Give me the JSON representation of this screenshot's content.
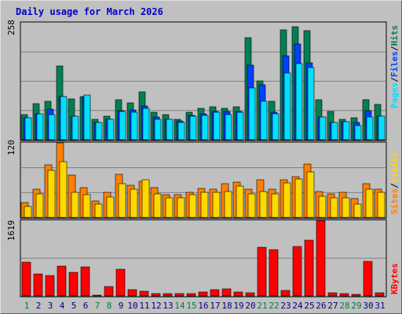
{
  "window": {
    "title": "Daily usage for March 2026"
  },
  "colors": {
    "hits": "#008050",
    "files": "#0040ff",
    "pages": "#00e0ff",
    "visits": "#ff8000",
    "sites": "#ffd800",
    "kbytes": "#ff0000",
    "grid": "#808080",
    "plot_bg": "#c0c0c0",
    "weekday_label": "#000080",
    "weekend_label": "#008040"
  },
  "chart_data": [
    {
      "type": "bar",
      "title": "Daily usage for March 2026",
      "categories": [
        "1",
        "2",
        "3",
        "4",
        "5",
        "6",
        "7",
        "8",
        "9",
        "10",
        "11",
        "12",
        "13",
        "14",
        "15",
        "16",
        "17",
        "18",
        "19",
        "20",
        "21",
        "22",
        "23",
        "24",
        "25",
        "26",
        "27",
        "28",
        "29",
        "30",
        "31"
      ],
      "weekend_days": [
        "1",
        "7",
        "8",
        "14",
        "15",
        "21",
        "22",
        "28",
        "29"
      ],
      "ymax_label": "258",
      "ylim": [
        0,
        258
      ],
      "legend": [
        "Pages",
        "Files",
        "Hits"
      ],
      "grid": true,
      "series": [
        {
          "name": "Hits",
          "values": [
            56,
            80,
            85,
            162,
            90,
            95,
            45,
            52,
            88,
            82,
            105,
            60,
            55,
            45,
            60,
            69,
            72,
            70,
            72,
            225,
            130,
            84,
            242,
            250,
            240,
            88,
            62,
            45,
            48,
            88,
            78
          ]
        },
        {
          "name": "Files",
          "values": [
            48,
            58,
            68,
            95,
            52,
            95,
            38,
            45,
            64,
            65,
            74,
            50,
            45,
            42,
            54,
            57,
            62,
            63,
            62,
            165,
            122,
            60,
            185,
            212,
            170,
            50,
            38,
            40,
            38,
            64,
            52
          ]
        },
        {
          "name": "Pages",
          "values": [
            48,
            58,
            55,
            95,
            52,
            98,
            38,
            45,
            62,
            60,
            70,
            45,
            45,
            38,
            52,
            54,
            60,
            56,
            60,
            115,
            85,
            58,
            148,
            168,
            160,
            50,
            38,
            40,
            32,
            50,
            52
          ]
        }
      ]
    },
    {
      "type": "bar",
      "categories": [
        "1",
        "2",
        "3",
        "4",
        "5",
        "6",
        "7",
        "8",
        "9",
        "10",
        "11",
        "12",
        "13",
        "14",
        "15",
        "16",
        "17",
        "18",
        "19",
        "20",
        "21",
        "22",
        "23",
        "24",
        "25",
        "26",
        "27",
        "28",
        "29",
        "30",
        "31"
      ],
      "ymax_label": "120",
      "ylim": [
        0,
        120
      ],
      "legend": [
        "Sites",
        "Visits"
      ],
      "grid": true,
      "series": [
        {
          "name": "Visits",
          "values": [
            24,
            45,
            84,
            120,
            68,
            48,
            26,
            40,
            70,
            52,
            58,
            48,
            36,
            36,
            40,
            47,
            45,
            54,
            57,
            45,
            60,
            45,
            60,
            66,
            86,
            42,
            38,
            40,
            30,
            54,
            45
          ]
        },
        {
          "name": "Sites",
          "values": [
            18,
            38,
            76,
            90,
            40,
            36,
            22,
            33,
            54,
            45,
            60,
            38,
            31,
            31,
            36,
            40,
            40,
            42,
            50,
            38,
            42,
            38,
            56,
            62,
            73,
            34,
            31,
            31,
            22,
            45,
            40
          ]
        }
      ]
    },
    {
      "type": "bar",
      "categories": [
        "1",
        "2",
        "3",
        "4",
        "5",
        "6",
        "7",
        "8",
        "9",
        "10",
        "11",
        "12",
        "13",
        "14",
        "15",
        "16",
        "17",
        "18",
        "19",
        "20",
        "21",
        "22",
        "23",
        "24",
        "25",
        "26",
        "27",
        "28",
        "29",
        "30",
        "31"
      ],
      "ymax_label": "1619",
      "ylim": [
        0,
        1619
      ],
      "legend": [
        "KBytes"
      ],
      "grid": true,
      "series": [
        {
          "name": "KBytes",
          "values": [
            720,
            470,
            440,
            640,
            500,
            620,
            25,
            200,
            580,
            140,
            100,
            50,
            45,
            45,
            45,
            80,
            135,
            150,
            80,
            60,
            1040,
            1000,
            120,
            1070,
            1200,
            1619,
            60,
            55,
            40,
            750,
            60
          ]
        }
      ]
    }
  ]
}
